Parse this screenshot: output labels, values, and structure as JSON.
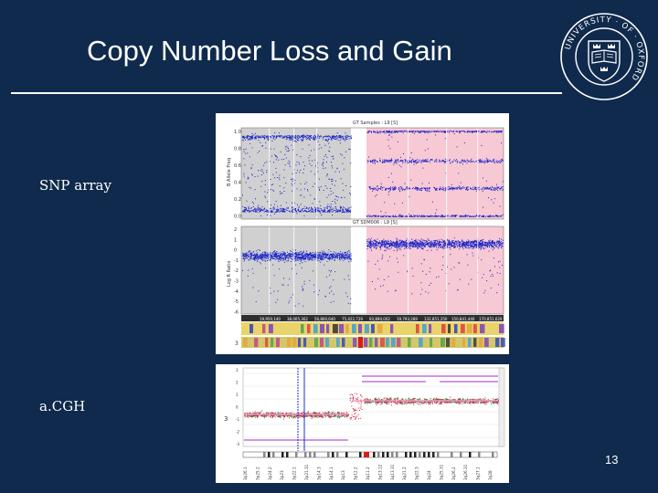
{
  "slide": {
    "title": "Copy Number Loss and Gain",
    "page_number": "13"
  },
  "crest": {
    "ring_text": "UNIVERSITY · OF · OXFORD",
    "book_text": "DOMINUS ILLUMINATIO MEA"
  },
  "labels": {
    "snp": "SNP array",
    "acgh": "a.CGH"
  },
  "snp_figure": {
    "top_panel_title": "GT Samples : L9 [S]",
    "bottom_panel_title": "GT SDM006 : L9 [S]",
    "top_y_ticks": [
      "1.0",
      "0.8",
      "0.6",
      "0.4",
      "0.2",
      "0.0"
    ],
    "bottom_y_ticks": [
      "2",
      "1",
      "0",
      "-1",
      "-2",
      "-3",
      "-4",
      "-5",
      "-6"
    ],
    "top_y_label": "B Allele Freq",
    "bottom_y_label": "Log R Ratio",
    "positions": [
      "19,950,140",
      "38,005,362",
      "56,860,640",
      "75,422,729",
      "93,890,002",
      "19,793,289",
      "132,851,250",
      "150,841,440",
      "170,851,629"
    ],
    "chromosome_number": "3",
    "colors": {
      "points": "#1a23c8",
      "gain_region": "#f7c9d4",
      "loss_region": "#d0d0d0"
    }
  },
  "acgh_figure": {
    "chromosome_number": "3",
    "y_ticks": [
      "3",
      "2",
      "1",
      "0",
      "-1",
      "-2",
      "-3"
    ],
    "band_labels": [
      "3p26.1",
      "3p25.2",
      "3p24.2",
      "3p23",
      "3p22.1",
      "3p21.31",
      "3p14.3",
      "3p14.1",
      "3p13",
      "3p12.2",
      "3q11.2",
      "3q13.12",
      "3q13.31",
      "3q21.2",
      "3q22.3",
      "3q24",
      "3q25.31",
      "3q26.2",
      "3q26.31",
      "3q27.1",
      "3q28"
    ],
    "colors": {
      "points_low": "#2e8b3a",
      "points_high": "#d81b3a",
      "segment": "#9c2bd0"
    }
  }
}
